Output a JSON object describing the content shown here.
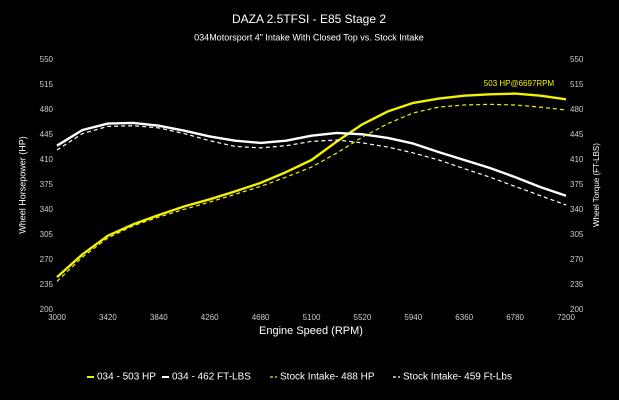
{
  "chart_data": {
    "type": "line",
    "title": "DAZA 2.5TFSI - E85 Stage 2",
    "subtitle": "034Motorsport 4\" Intake With Closed Top vs. Stock Intake",
    "x_label": "Engine Speed (RPM)",
    "y_label": "Wheel Horsepower (HP)",
    "y2_label": "Wheel Torque (FT-LBS)",
    "annotation": "503 HP@6697RPM",
    "x": [
      3000,
      3210,
      3420,
      3630,
      3840,
      4050,
      4260,
      4470,
      4680,
      4890,
      5100,
      5310,
      5520,
      5730,
      5940,
      6150,
      6360,
      6570,
      6780,
      6990,
      7200
    ],
    "xlim": [
      3000,
      7200
    ],
    "xticks": [
      3000,
      3420,
      3840,
      4260,
      4680,
      5100,
      5520,
      5940,
      6360,
      6780,
      7200
    ],
    "ylim": [
      200,
      550
    ],
    "yticks": [
      200,
      235,
      270,
      305,
      340,
      375,
      410,
      445,
      480,
      515,
      550
    ],
    "y2lim": [
      200,
      550
    ],
    "y2ticks": [
      200,
      235,
      270,
      305,
      340,
      375,
      410,
      445,
      480,
      515,
      550
    ],
    "grid": false,
    "series": [
      {
        "name": "034 - 503 HP",
        "color": "#f2f200",
        "dashed": false,
        "axis": "y",
        "values": [
          246,
          278,
          304,
          320,
          333,
          345,
          355,
          366,
          378,
          393,
          410,
          436,
          460,
          478,
          490,
          496,
          500,
          502,
          503,
          500,
          495
        ]
      },
      {
        "name": "034 - 462 FT-LBS",
        "color": "#ffffff",
        "dashed": false,
        "axis": "y2",
        "values": [
          430,
          452,
          461,
          462,
          458,
          451,
          443,
          437,
          434,
          437,
          444,
          448,
          446,
          441,
          433,
          421,
          410,
          399,
          386,
          372,
          360
        ]
      },
      {
        "name": "Stock Intake- 488 HP",
        "color": "#f2f200",
        "dashed": true,
        "axis": "y",
        "values": [
          240,
          274,
          301,
          318,
          330,
          341,
          351,
          362,
          373,
          386,
          400,
          420,
          442,
          461,
          476,
          484,
          487,
          488,
          487,
          484,
          480
        ]
      },
      {
        "name": "Stock Intake- 459 Ft-Lbs",
        "color": "#ffffff",
        "dashed": true,
        "axis": "y2",
        "values": [
          424,
          447,
          457,
          458,
          455,
          447,
          437,
          429,
          427,
          430,
          436,
          438,
          434,
          428,
          420,
          410,
          398,
          386,
          373,
          360,
          347
        ]
      }
    ]
  }
}
